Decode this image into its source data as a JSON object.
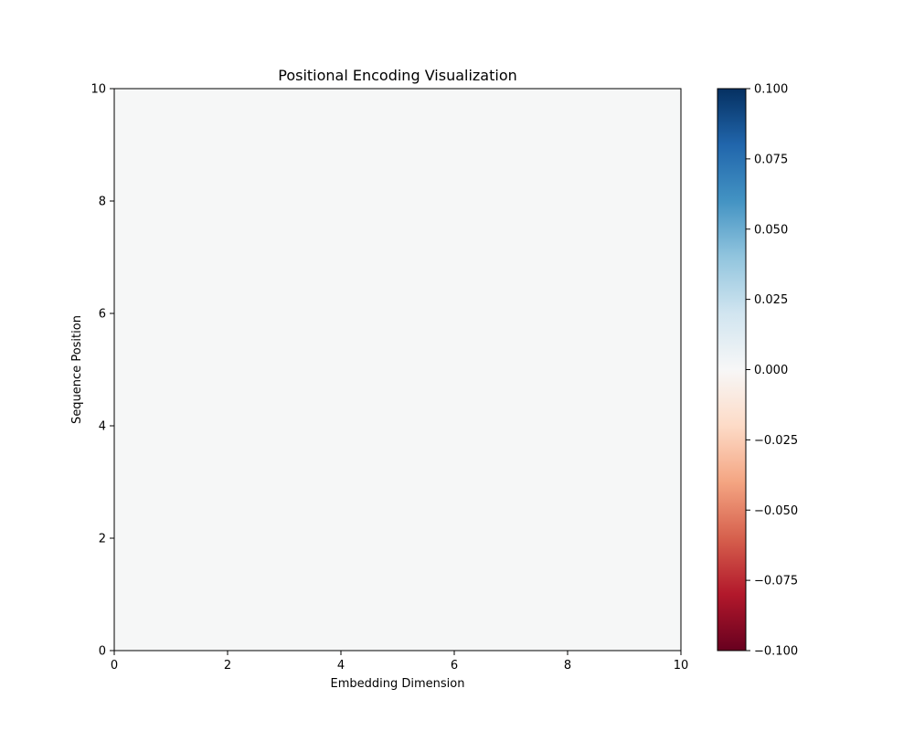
{
  "chart_data": {
    "type": "heatmap",
    "title": "Positional Encoding Visualization",
    "xlabel": "Embedding Dimension",
    "ylabel": "Sequence Position",
    "xlim": [
      0,
      10
    ],
    "ylim": [
      0,
      10
    ],
    "x_ticks": [
      "0",
      "2",
      "4",
      "6",
      "8",
      "10"
    ],
    "y_ticks": [
      "0",
      "2",
      "4",
      "6",
      "8",
      "10"
    ],
    "values": [
      [
        0.0
      ]
    ],
    "colormap": "RdBu",
    "cell_color": "#f6f7f7",
    "colorbar": {
      "range": [
        -0.1,
        0.1
      ],
      "ticks": [
        "−0.100",
        "−0.075",
        "−0.050",
        "−0.025",
        "0.000",
        "0.025",
        "0.050",
        "0.075",
        "0.100"
      ],
      "stops": [
        "#67001f",
        "#b2182b",
        "#d6604d",
        "#f4a582",
        "#fddbc7",
        "#f7f7f7",
        "#d1e5f0",
        "#92c5de",
        "#4393c3",
        "#2166ac",
        "#053061"
      ]
    },
    "grid": false,
    "legend": "none"
  }
}
